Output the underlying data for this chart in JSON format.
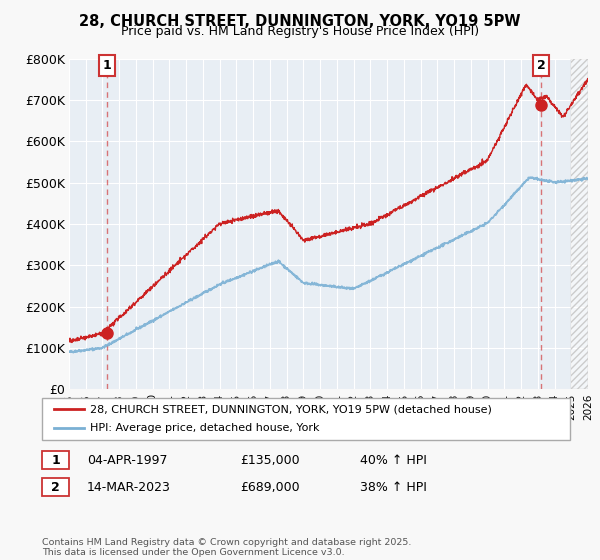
{
  "title_line1": "28, CHURCH STREET, DUNNINGTON, YORK, YO19 5PW",
  "title_line2": "Price paid vs. HM Land Registry's House Price Index (HPI)",
  "legend_label1": "28, CHURCH STREET, DUNNINGTON, YORK, YO19 5PW (detached house)",
  "legend_label2": "HPI: Average price, detached house, York",
  "annotation1_date": "04-APR-1997",
  "annotation1_price": "£135,000",
  "annotation1_hpi": "40% ↑ HPI",
  "annotation2_date": "14-MAR-2023",
  "annotation2_price": "£689,000",
  "annotation2_hpi": "38% ↑ HPI",
  "copyright_text": "Contains HM Land Registry data © Crown copyright and database right 2025.\nThis data is licensed under the Open Government Licence v3.0.",
  "ylim": [
    0,
    800000
  ],
  "ytick_values": [
    0,
    100000,
    200000,
    300000,
    400000,
    500000,
    600000,
    700000,
    800000
  ],
  "ytick_labels": [
    "£0",
    "£100K",
    "£200K",
    "£300K",
    "£400K",
    "£500K",
    "£600K",
    "£700K",
    "£800K"
  ],
  "fig_bg_color": "#f8f8f8",
  "plot_bg_color": "#e8eef4",
  "red_color": "#cc2222",
  "blue_color": "#7ab0d4",
  "grid_color": "#ffffff",
  "annotation_box_color": "#cc3333",
  "sale1_t": 1997.25,
  "sale1_p": 135000,
  "sale2_t": 2023.2,
  "sale2_p": 689000,
  "xlim_left": 1995.0,
  "xlim_right": 2026.0,
  "stripe_start": 2025.0
}
